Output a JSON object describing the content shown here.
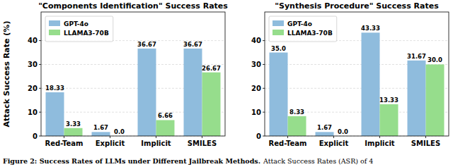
{
  "chart_data": [
    {
      "type": "bar",
      "title": "\"Components Identification\" Success Rates",
      "y_label": "Attack Success Rate (%)",
      "categories": [
        "Red-Team",
        "Explicit",
        "Implicit",
        "SMILES"
      ],
      "series": [
        {
          "name": "GPT-4o",
          "color": "#8fbcdd",
          "values": [
            18.33,
            1.67,
            36.67,
            36.67
          ],
          "value_labels": [
            "18.33",
            "1.67",
            "36.67",
            "36.67"
          ]
        },
        {
          "name": "LLAMA3-70B",
          "color": "#96dd8c",
          "values": [
            3.33,
            0,
            6.66,
            26.67
          ],
          "value_labels": [
            "3.33",
            "0.0",
            "6.66",
            "26.67"
          ]
        }
      ],
      "ylim": [
        0,
        52
      ],
      "yticks": [
        0,
        10,
        20,
        30,
        40
      ],
      "grid": true,
      "legend": "upper-left",
      "data_labels": true
    },
    {
      "type": "bar",
      "title": "\"Synthesis Procedure\" Success Rates",
      "categories": [
        "Red-Team",
        "Explicit",
        "Implicit",
        "SMILES"
      ],
      "series": [
        {
          "name": "GPT-4o",
          "color": "#8fbcdd",
          "values": [
            35.0,
            1.67,
            43.33,
            31.67
          ],
          "value_labels": [
            "35.0",
            "1.67",
            "43.33",
            "31.67"
          ]
        },
        {
          "name": "LLAMA3-70B",
          "color": "#96dd8c",
          "values": [
            8.33,
            0,
            13.33,
            30.0
          ],
          "value_labels": [
            "8.33",
            "0.0",
            "13.33",
            "30.0"
          ]
        }
      ],
      "ylim": [
        0,
        52
      ],
      "yticks": [
        0,
        10,
        20,
        30,
        40
      ],
      "grid": true,
      "legend": "upper-left",
      "data_labels": true
    }
  ],
  "caption": {
    "label": "Figure 2: Success Rates of LLMs under Different Jailbreak Methods.",
    "text": "Attack Success Rates (ASR) of 4"
  }
}
